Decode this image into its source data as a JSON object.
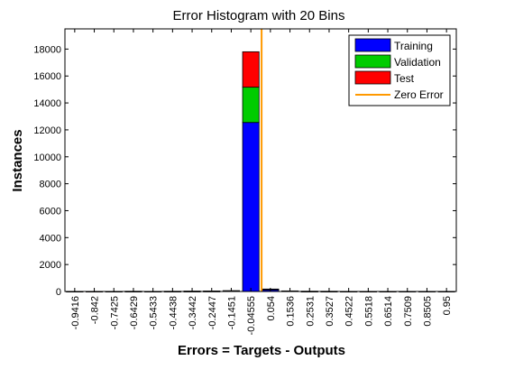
{
  "chart_data": {
    "type": "bar",
    "stacked": true,
    "title": "Error Histogram with 20 Bins",
    "xlabel": "Errors = Targets - Outputs",
    "ylabel": "Instances",
    "ylim": [
      0,
      19500
    ],
    "yticks": [
      0,
      2000,
      4000,
      6000,
      8000,
      10000,
      12000,
      14000,
      16000,
      18000
    ],
    "categories": [
      "-0.9416",
      "-0.842",
      "-0.7425",
      "-0.6429",
      "-0.5433",
      "-0.4438",
      "-0.3442",
      "-0.2447",
      "-0.1451",
      "-0.04555",
      "0.054",
      "0.1536",
      "0.2531",
      "0.3527",
      "0.4522",
      "0.5518",
      "0.6514",
      "0.7509",
      "0.8505",
      "0.95"
    ],
    "series": [
      {
        "name": "Training",
        "color": "#0000ff",
        "values": [
          5,
          3,
          5,
          8,
          5,
          8,
          15,
          20,
          40,
          12550,
          130,
          30,
          10,
          8,
          5,
          3,
          3,
          2,
          2,
          2
        ]
      },
      {
        "name": "Validation",
        "color": "#00cc00",
        "values": [
          1,
          1,
          1,
          2,
          1,
          2,
          3,
          4,
          8,
          2620,
          25,
          6,
          2,
          2,
          1,
          1,
          1,
          0,
          0,
          0
        ]
      },
      {
        "name": "Test",
        "color": "#ff0000",
        "values": [
          1,
          1,
          1,
          2,
          1,
          2,
          3,
          4,
          8,
          2630,
          25,
          6,
          2,
          2,
          1,
          1,
          1,
          0,
          0,
          0
        ]
      }
    ],
    "zero_error": {
      "name": "Zero Error",
      "color": "#ff9900",
      "x_position_between": [
        "-0.04555",
        "0.054"
      ],
      "fraction": 0.55
    },
    "legend_position": "top-right",
    "grid": false
  }
}
